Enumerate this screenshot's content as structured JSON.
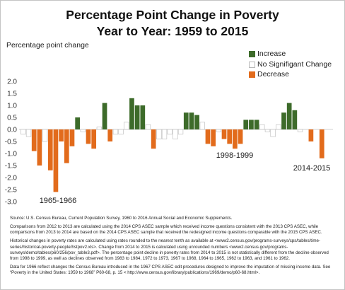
{
  "chart_data": {
    "type": "bar",
    "title": "Percentage Point Change in Poverty\nYear to Year: 1959 to 2015",
    "xlabel": "",
    "ylabel": "Percentage point change",
    "ylim": [
      -3.0,
      2.0
    ],
    "yticks": [
      "2.0",
      "1.5",
      "1.0",
      "0.5",
      "0.0",
      "-0.5",
      "-1.0",
      "-1.5",
      "-2.0",
      "-2.5",
      "-3.0"
    ],
    "grid": false,
    "legend": "top-right",
    "series": [
      {
        "name": "Increase",
        "color": "#3d6b2a",
        "values": [
          null,
          null,
          null,
          null,
          null,
          null,
          null,
          null,
          null,
          null,
          0.5,
          null,
          null,
          null,
          null,
          1.1,
          null,
          null,
          null,
          null,
          1.3,
          1.0,
          1.0,
          null,
          null,
          null,
          null,
          null,
          null,
          null,
          0.7,
          0.7,
          0.6,
          null,
          null,
          null,
          null,
          null,
          null,
          null,
          null,
          0.4,
          0.4,
          0.4,
          null,
          null,
          null,
          null,
          0.7,
          1.1,
          0.8,
          null,
          null,
          null,
          null,
          null
        ]
      },
      {
        "name": "No Signifigant Change",
        "color": "#ffffff",
        "outline": "#b8b8b8",
        "values": [
          -0.2,
          -0.3,
          null,
          null,
          -0.5,
          null,
          null,
          null,
          null,
          null,
          null,
          -0.1,
          null,
          null,
          0.1,
          null,
          null,
          -0.2,
          -0.2,
          0.3,
          null,
          null,
          null,
          0.2,
          null,
          -0.4,
          -0.4,
          -0.2,
          -0.4,
          -0.2,
          null,
          null,
          null,
          0.3,
          null,
          null,
          -0.1,
          null,
          null,
          null,
          null,
          null,
          null,
          null,
          0.2,
          -0.1,
          -0.3,
          0.2,
          null,
          null,
          null,
          -0.1,
          0.0,
          null,
          0.0,
          null
        ]
      },
      {
        "name": "Decrease",
        "color": "#e26b1c",
        "values": [
          null,
          null,
          -0.9,
          -1.5,
          null,
          -1.7,
          -2.6,
          -0.5,
          -1.4,
          -0.7,
          null,
          null,
          -0.6,
          -0.8,
          null,
          null,
          -0.5,
          null,
          null,
          null,
          null,
          null,
          null,
          null,
          -0.8,
          null,
          null,
          null,
          null,
          null,
          null,
          null,
          null,
          null,
          -0.6,
          -0.7,
          null,
          -0.4,
          -0.6,
          -0.8,
          -0.6,
          null,
          null,
          null,
          null,
          null,
          null,
          null,
          null,
          null,
          null,
          null,
          null,
          -0.5,
          null,
          -1.2
        ]
      }
    ],
    "annotations": [
      "1965-1966",
      "1998-1999",
      "2014-2015"
    ]
  },
  "footnotes": [
    "Source: U.S. Census Bureau, Current Population Survey, 1960 to 2016 Annual Social and Economic Supplements.",
    "Comparisons from 2012 to 2013 are calculated using the 2014 CPS ASEC sample which received income questions consistent with the 2013 CPS ASEC, while comparisons from 2013 to 2014 are based on the 2014 CPS ASEC sample that received the redesigned income questions comparable with the 2015 CPS ASEC.",
    "Historical changes in poverty rates are calculated using rates rounded to the nearest tenth as available at <www2.census.gov/programs-surveys/cps/tables/time-series/historical-poverty-people/hstpov2.xls>.  Change from 2014 to 2015 is calculated using unrounded numbers <www2.census.gov/programs-surveys/demo/tables/p60/256/pov_table3.pdf>. The percentage point decline in poverty rates from 2014 to 2015 is not statistically different from the decline observed from 1998 to 1999, as well as declines observed from 1983 to 1984, 1972 to 1973, 1967 to 1968, 1964 to 1965, 1962 to 1963, and 1961 to 1962.",
    "Data for 1966 reflect changes the Census Bureau introduced in the 1967 CPS ASEC edit procedures designed to improve the imputation of missing income data. See “Poverty in the United States: 1959 to 1968” P60-68, p. 15 < http://www.census.gov/library/publications/1969/demo/p60-68.html>."
  ]
}
